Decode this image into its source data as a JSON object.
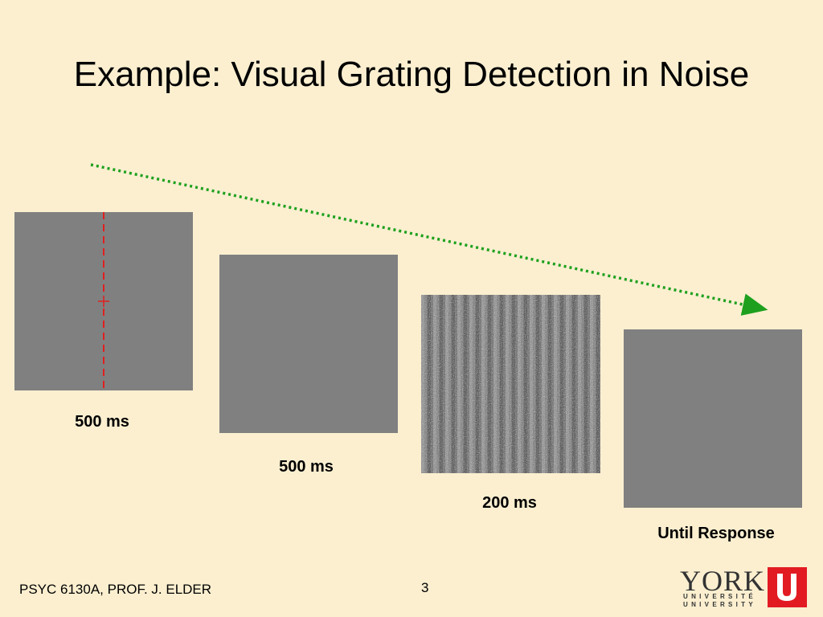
{
  "title": "Example:  Visual Grating Detection in Noise",
  "frames": [
    {
      "label": "500 ms"
    },
    {
      "label": "500 ms"
    },
    {
      "label": "200 ms"
    },
    {
      "label": "Until Response"
    }
  ],
  "footer": {
    "course": "PSYC 6130A, PROF. J. ELDER",
    "page": "3"
  },
  "logo": {
    "name": "YORK",
    "line1": "UNIVERSITÉ",
    "line2": "UNIVERSITY"
  }
}
